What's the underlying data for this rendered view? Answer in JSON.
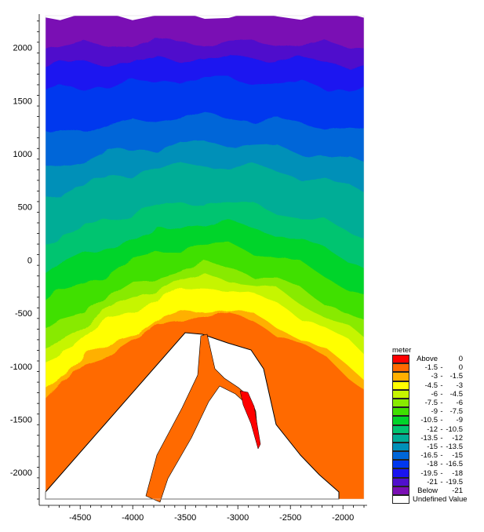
{
  "chart_data": {
    "type": "heatmap",
    "subtype": "filled-contour",
    "title": "",
    "xlabel": "",
    "ylabel": "",
    "xlim": [
      -4830,
      -1800
    ],
    "ylim": [
      -2250,
      2300
    ],
    "x_ticks": [
      -4500,
      -4000,
      -3500,
      -3000,
      -2500,
      -2000
    ],
    "y_ticks": [
      -2000,
      -1500,
      -1000,
      -500,
      0,
      500,
      1000,
      1500,
      2000
    ],
    "x_tick_labels": [
      "-4500",
      "-4000",
      "-3500",
      "-3000",
      "-2500",
      "-2000"
    ],
    "y_tick_labels": [
      "-2000",
      "-1500",
      "-1000",
      "-500",
      "0",
      "500",
      "1000",
      "1500",
      "2000"
    ],
    "data_extent": {
      "x": [
        -4800,
        -1850
      ],
      "y": [
        -2200,
        2300
      ]
    },
    "legend": {
      "title": "meter",
      "placement": "right",
      "classes": [
        {
          "label": "Above",
          "low": "Above",
          "high": "0",
          "color": "#ff0000"
        },
        {
          "label": "-1.5 - 0",
          "low": "-1.5",
          "high": "0",
          "color": "#ff6a00"
        },
        {
          "label": "-3 - -1.5",
          "low": "-3",
          "high": "-1.5",
          "color": "#ffb000"
        },
        {
          "label": "-4.5 - -3",
          "low": "-4.5",
          "high": "-3",
          "color": "#ffff00"
        },
        {
          "label": "-6 - -4.5",
          "low": "-6",
          "high": "-4.5",
          "color": "#c6f500"
        },
        {
          "label": "-7.5 - -6",
          "low": "-7.5",
          "high": "-6",
          "color": "#88ea00"
        },
        {
          "label": "-9 - -7.5",
          "low": "-9",
          "high": "-7.5",
          "color": "#3fe000"
        },
        {
          "label": "-10.5 - -9",
          "low": "-10.5",
          "high": "-9",
          "color": "#00d42a"
        },
        {
          "label": "-12 - -10.5",
          "low": "-12",
          "high": "-10.5",
          "color": "#00c470"
        },
        {
          "label": "-13.5 - -12",
          "low": "-13.5",
          "high": "-12",
          "color": "#00ad96"
        },
        {
          "label": "-15 - -13.5",
          "low": "-15",
          "high": "-13.5",
          "color": "#0090b8"
        },
        {
          "label": "-16.5 - -15",
          "low": "-16.5",
          "high": "-15",
          "color": "#0066d8"
        },
        {
          "label": "-18 - -16.5",
          "low": "-18",
          "high": "-16.5",
          "color": "#0038ee"
        },
        {
          "label": "-19.5 - -18",
          "low": "-19.5",
          "high": "-18",
          "color": "#1a14f0"
        },
        {
          "label": "-21 - -19.5",
          "low": "-21",
          "high": "-19.5",
          "color": "#5010cc"
        },
        {
          "label": "Below -21",
          "low": "Below",
          "high": "-21",
          "color": "#7a0fb4"
        },
        {
          "label": "Undefined Value",
          "low": "Undefined Value",
          "high": "",
          "color": "#ffffff"
        }
      ]
    },
    "bands_top_to_bottom_center_x": [
      {
        "class": "Below -21",
        "y_low": 2050,
        "y_high": 2300
      },
      {
        "class": "-21 - -19.5",
        "y_low": 1900,
        "y_high": 2050
      },
      {
        "class": "-19.5 - -18",
        "y_low": 1700,
        "y_high": 1900
      },
      {
        "class": "-18 - -16.5",
        "y_low": 1350,
        "y_high": 1700
      },
      {
        "class": "-16.5 - -15",
        "y_low": 1100,
        "y_high": 1350
      },
      {
        "class": "-15 - -13.5",
        "y_low": 900,
        "y_high": 1100
      },
      {
        "class": "-13.5 - -12",
        "y_low": 550,
        "y_high": 900
      },
      {
        "class": "-12 - -10.5",
        "y_low": 350,
        "y_high": 550
      },
      {
        "class": "-10.5 - -9",
        "y_low": 150,
        "y_high": 350
      },
      {
        "class": "-9 - -7.5",
        "y_low": -50,
        "y_high": 150
      },
      {
        "class": "-7.5 - -6",
        "y_low": -150,
        "y_high": -50
      },
      {
        "class": "-6 - -4.5",
        "y_low": -250,
        "y_high": -150
      },
      {
        "class": "-4.5 - -3",
        "y_low": -450,
        "y_high": -250
      },
      {
        "class": "-3 - -1.5",
        "y_low": -500,
        "y_high": -450
      },
      {
        "class": "-1.5 - 0",
        "y_low": -600,
        "y_high": -500
      },
      {
        "class": "Above",
        "y_low": -1700,
        "y_high": -1200,
        "note": "small patch near x=-2900"
      }
    ]
  }
}
